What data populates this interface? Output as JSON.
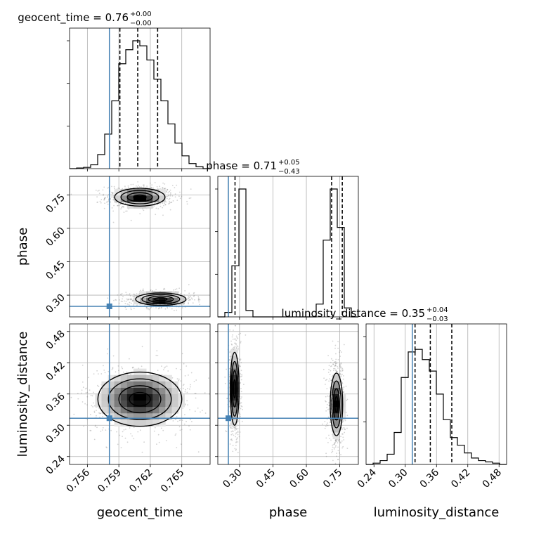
{
  "chart_data": {
    "type": "corner",
    "parameters": [
      "geocent_time",
      "phase",
      "luminosity_distance"
    ],
    "titles": [
      {
        "param": "geocent_time",
        "name": "geocent_time",
        "median": "0.76",
        "plus": "+0.00",
        "minus": "−0.00"
      },
      {
        "param": "phase",
        "name": "phase",
        "median": "0.71",
        "plus": "+0.05",
        "minus": "−0.43"
      },
      {
        "param": "luminosity_distance",
        "name": "luminosity_distance",
        "median": "0.35",
        "plus": "+0.04",
        "minus": "−0.03"
      }
    ],
    "axis_labels": {
      "x": [
        "geocent_time",
        "phase",
        "luminosity_distance"
      ],
      "y": [
        "phase",
        "luminosity_distance"
      ]
    },
    "ranges": {
      "geocent_time": [
        0.7543,
        0.7677
      ],
      "phase": [
        0.2025,
        0.8333
      ],
      "luminosity_distance": [
        0.2248,
        0.4945
      ]
    },
    "ticks": {
      "geocent_time": [
        "0.756",
        "0.759",
        "0.762",
        "0.765"
      ],
      "phase": [
        "0.30",
        "0.45",
        "0.60",
        "0.75"
      ],
      "luminosity_distance": [
        "0.24",
        "0.30",
        "0.36",
        "0.42",
        "0.48"
      ]
    },
    "truths": {
      "geocent_time": 0.7581,
      "phase": 0.2499,
      "luminosity_distance": 0.3135
    },
    "quantiles": {
      "geocent_time": [
        0.7591,
        0.7608,
        0.7627
      ],
      "phase": [
        0.2797,
        0.7133,
        0.7612
      ],
      "luminosity_distance": [
        0.3188,
        0.3481,
        0.3893
      ]
    },
    "histograms": {
      "geocent_time": {
        "x0": 0.7543,
        "x1": 0.7677,
        "counts": [
          0,
          0.005,
          0.01,
          0.03,
          0.11,
          0.27,
          0.53,
          0.82,
          0.93,
          1.0,
          0.96,
          0.85,
          0.7,
          0.53,
          0.35,
          0.2,
          0.1,
          0.04,
          0.015,
          0.0
        ]
      },
      "phase": {
        "x0": 0.2025,
        "x1": 0.8333,
        "counts": [
          0,
          0.035,
          0.4,
          1.0,
          0.05,
          0,
          0,
          0,
          0,
          0,
          0,
          0,
          0,
          0,
          0.1,
          0.6,
          1.0,
          0.7,
          0.07,
          0
        ]
      },
      "luminosity_distance": {
        "x0": 0.2248,
        "x1": 0.4945,
        "counts": [
          0,
          0.01,
          0.03,
          0.08,
          0.25,
          0.68,
          0.88,
          0.9,
          0.82,
          0.73,
          0.55,
          0.35,
          0.21,
          0.15,
          0.09,
          0.05,
          0.03,
          0.02,
          0.01,
          0.0
        ]
      }
    },
    "clusters_2d": [
      {
        "x": "geocent_time",
        "y": "phase",
        "cx": 0.761,
        "cy": 0.74,
        "sx": 0.0012,
        "sy": 0.02
      },
      {
        "x": "geocent_time",
        "y": "phase",
        "cx": 0.763,
        "cy": 0.282,
        "sx": 0.0012,
        "sy": 0.014
      },
      {
        "x": "geocent_time",
        "y": "luminosity_distance",
        "cx": 0.761,
        "cy": 0.35,
        "sx": 0.002,
        "sy": 0.026
      },
      {
        "x": "phase",
        "y": "luminosity_distance",
        "cx": 0.278,
        "cy": 0.37,
        "sx": 0.01,
        "sy": 0.035
      },
      {
        "x": "phase",
        "y": "luminosity_distance",
        "cx": 0.735,
        "cy": 0.34,
        "sx": 0.014,
        "sy": 0.03
      }
    ],
    "grid": true,
    "colors": {
      "truth": "#4682b4",
      "lines": "#000000",
      "grid": "#b0b0b0",
      "samples": "#808080"
    }
  }
}
